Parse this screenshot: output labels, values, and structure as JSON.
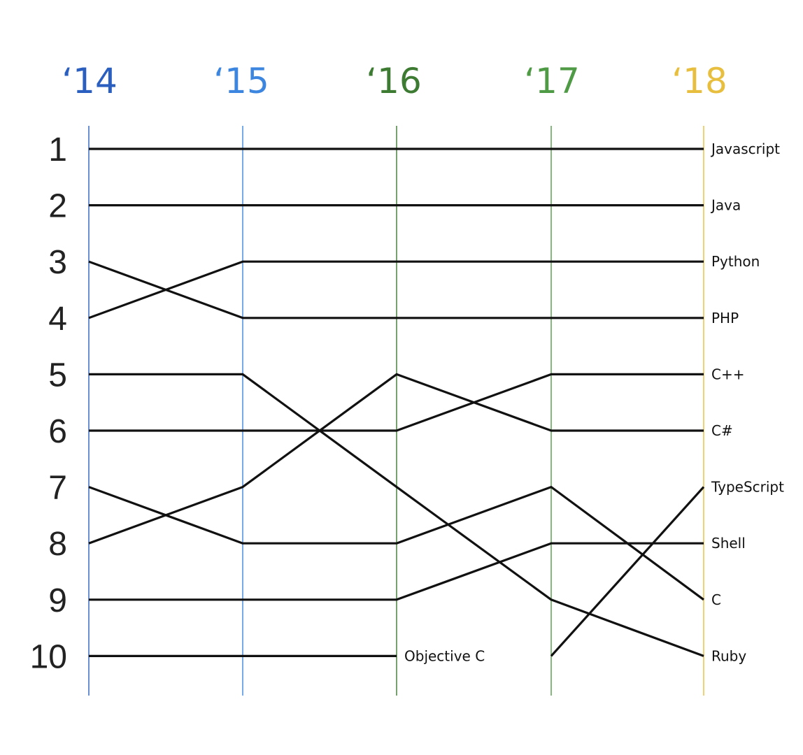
{
  "chart_data": {
    "type": "bump",
    "title": "",
    "years": [
      {
        "label": "‘14",
        "color": "#2b5fbf"
      },
      {
        "label": "‘15",
        "color": "#3d86e0"
      },
      {
        "label": "‘16",
        "color": "#3d7a32"
      },
      {
        "label": "‘17",
        "color": "#4f9a45"
      },
      {
        "label": "‘18",
        "color": "#e8be3e"
      }
    ],
    "rank_labels": [
      "1",
      "2",
      "3",
      "4",
      "5",
      "6",
      "7",
      "8",
      "9",
      "10"
    ],
    "series": [
      {
        "name": "Javascript",
        "ranks": [
          1,
          1,
          1,
          1,
          1
        ]
      },
      {
        "name": "Java",
        "ranks": [
          2,
          2,
          2,
          2,
          2
        ]
      },
      {
        "name": "Python",
        "ranks": [
          4,
          3,
          3,
          3,
          3
        ]
      },
      {
        "name": "PHP",
        "ranks": [
          3,
          4,
          4,
          4,
          4
        ]
      },
      {
        "name": "C++",
        "ranks": [
          6,
          6,
          6,
          5,
          5
        ]
      },
      {
        "name": "C#",
        "ranks": [
          8,
          7,
          5,
          6,
          6
        ]
      },
      {
        "name": "TypeScript",
        "ranks": [
          null,
          null,
          null,
          10,
          7
        ]
      },
      {
        "name": "Shell",
        "ranks": [
          9,
          9,
          9,
          8,
          8
        ]
      },
      {
        "name": "C",
        "ranks": [
          7,
          8,
          8,
          7,
          9
        ]
      },
      {
        "name": "Ruby",
        "ranks": [
          5,
          5,
          7,
          9,
          10
        ]
      },
      {
        "name": "Objective C",
        "ranks": [
          10,
          10,
          10,
          null,
          null
        ]
      }
    ],
    "line_color": "#111111"
  }
}
